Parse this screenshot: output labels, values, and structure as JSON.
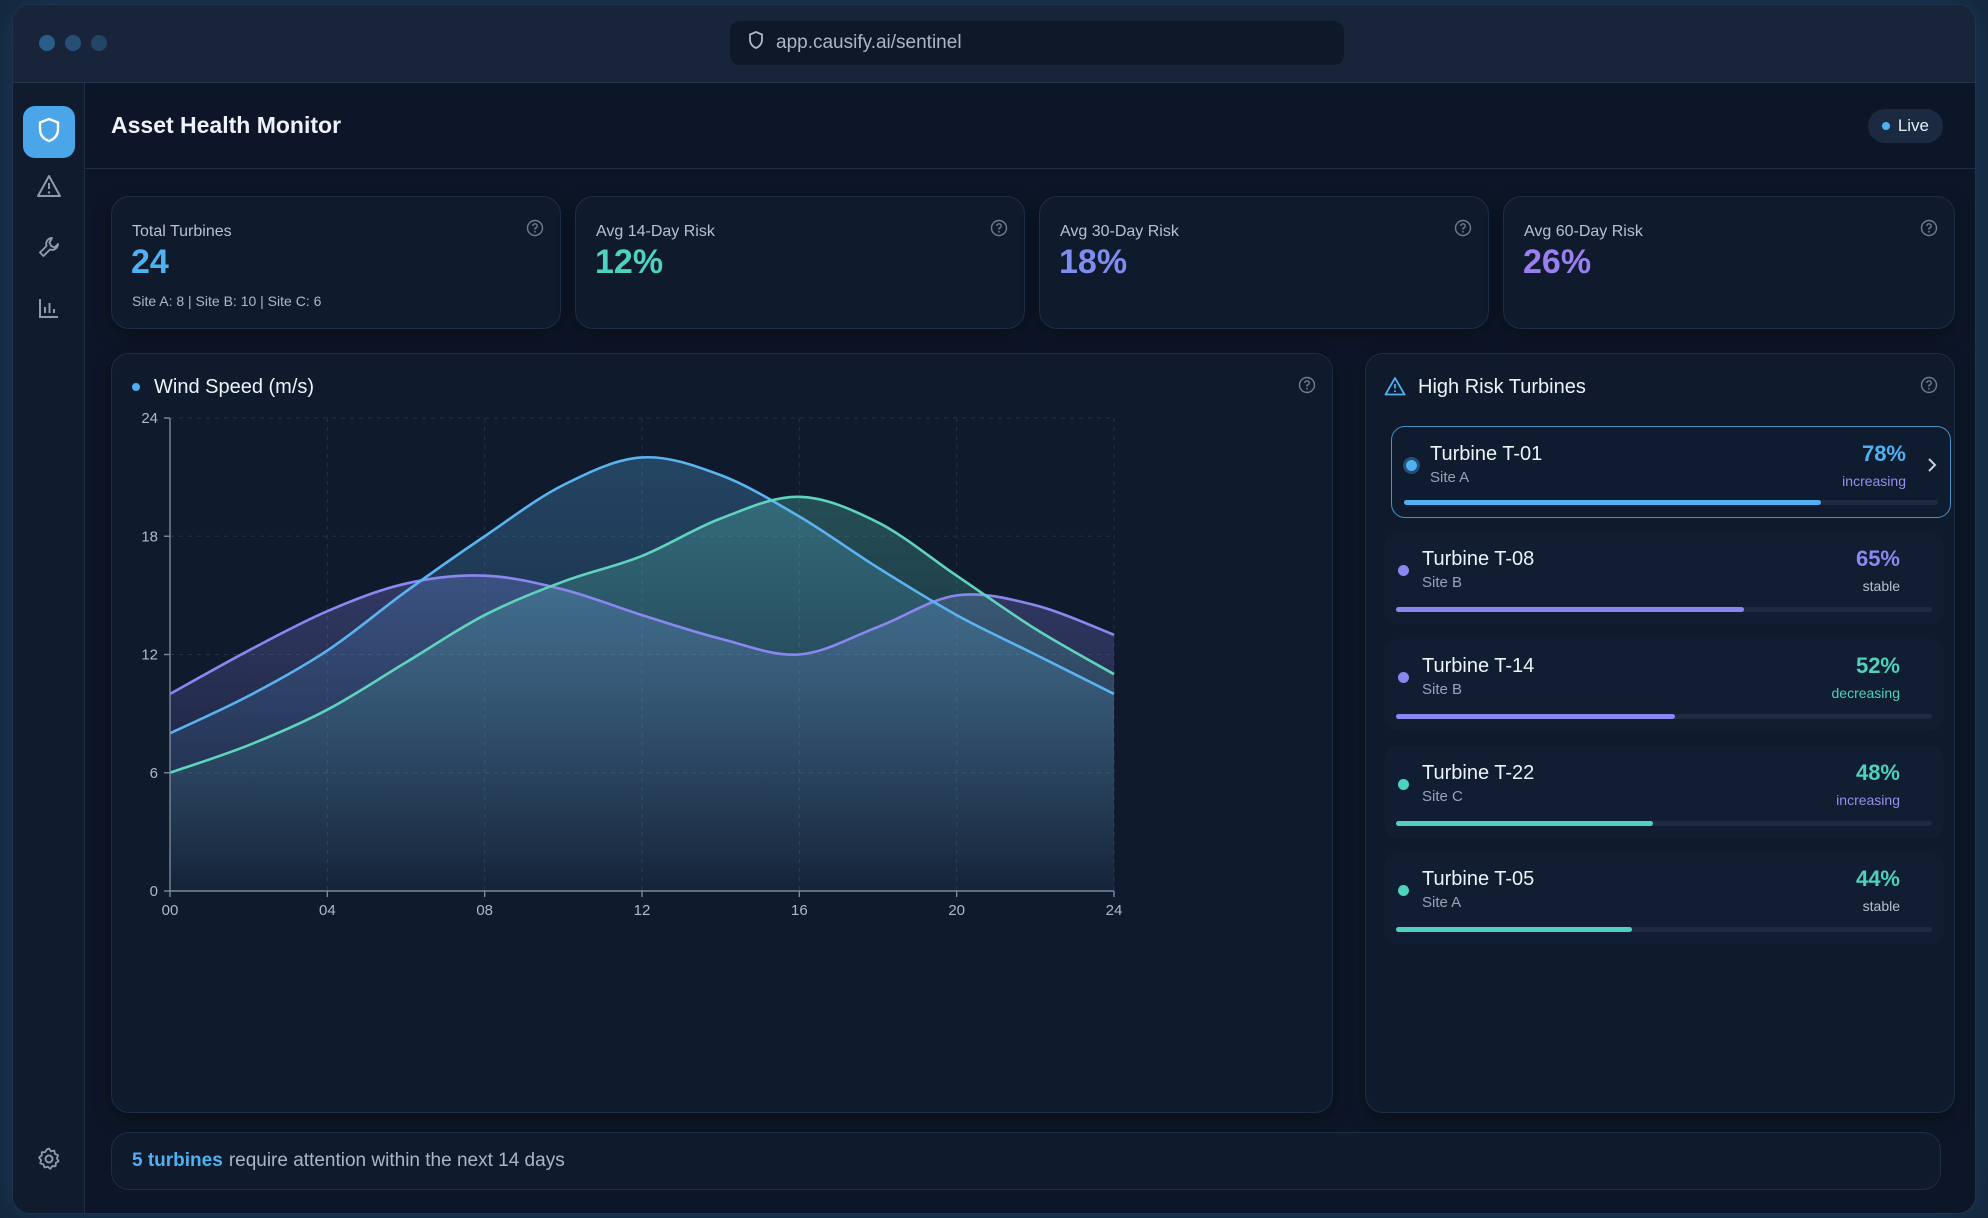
{
  "browser": {
    "url": "app.causify.ai/sentinel"
  },
  "header": {
    "title": "Asset Health Monitor",
    "live_label": "Live"
  },
  "sidebar": {
    "items": [
      {
        "icon": "shield-icon",
        "active": true
      },
      {
        "icon": "warning-icon",
        "active": false
      },
      {
        "icon": "wrench-icon",
        "active": false
      },
      {
        "icon": "bar-chart-icon",
        "active": false
      }
    ],
    "bottom_icon": "gear-icon"
  },
  "stats": [
    {
      "label": "Total Turbines",
      "value": "24",
      "sub": "Site A: 8 | Site B: 10 | Site C: 6",
      "color": "#4fb0f2"
    },
    {
      "label": "Avg 14-Day Risk",
      "value": "12%",
      "sub": "",
      "color": "#4fd1bf"
    },
    {
      "label": "Avg 30-Day Risk",
      "value": "18%",
      "sub": "",
      "color": "#7f8cf0"
    },
    {
      "label": "Avg 60-Day Risk",
      "value": "26%",
      "sub": "",
      "color": "#9b7ff0"
    }
  ],
  "chart_panel": {
    "title": "Wind Speed (m/s)"
  },
  "chart_data": {
    "type": "area",
    "title": "Wind Speed (m/s)",
    "xlabel": "",
    "ylabel": "",
    "x": [
      0,
      2,
      4,
      6,
      8,
      10,
      12,
      14,
      16,
      18,
      20,
      22,
      24
    ],
    "x_ticks": [
      "00",
      "04",
      "08",
      "12",
      "16",
      "20",
      "24"
    ],
    "y_ticks": [
      "0",
      "6",
      "12",
      "18",
      "24"
    ],
    "ylim": [
      0,
      24
    ],
    "xlim": [
      0,
      24
    ],
    "grid": true,
    "series": [
      {
        "color": "#8b87f0",
        "values": [
          10,
          12.2,
          14.2,
          15.6,
          16,
          15.3,
          14,
          12.8,
          12,
          13.4,
          15,
          14.5,
          13
        ]
      },
      {
        "color": "#5bb3f0",
        "values": [
          8,
          9.9,
          12.2,
          15.2,
          18,
          20.6,
          22,
          21.1,
          19,
          16.4,
          14,
          12,
          10
        ]
      },
      {
        "color": "#5fd3bd",
        "values": [
          6,
          7.4,
          9.2,
          11.6,
          14,
          15.7,
          17,
          18.9,
          20,
          18.7,
          16,
          13.3,
          11
        ]
      }
    ]
  },
  "risk_panel": {
    "title": "High Risk Turbines",
    "items": [
      {
        "name": "Turbine T-01",
        "site": "Site A",
        "pct": "78%",
        "risk": 0.78,
        "trend": "increasing",
        "color": "#4fb0f2",
        "trend_color": "#9b8cf0",
        "selected": true
      },
      {
        "name": "Turbine T-08",
        "site": "Site B",
        "pct": "65%",
        "risk": 0.65,
        "trend": "stable",
        "color": "#8b87f0",
        "trend_color": "#b7c2d1",
        "selected": false
      },
      {
        "name": "Turbine T-14",
        "site": "Site B",
        "pct": "52%",
        "risk": 0.52,
        "trend": "decreasing",
        "color": "#8b87f0",
        "trend_color": "#4fd1bf",
        "selected": false
      },
      {
        "name": "Turbine T-22",
        "site": "Site C",
        "pct": "48%",
        "risk": 0.48,
        "trend": "increasing",
        "color": "#4fd1bf",
        "trend_color": "#9b8cf0",
        "selected": false
      },
      {
        "name": "Turbine T-05",
        "site": "Site A",
        "pct": "44%",
        "risk": 0.44,
        "trend": "stable",
        "color": "#4fd1bf",
        "trend_color": "#b7c2d1",
        "selected": false
      }
    ]
  },
  "footer": {
    "highlight": "5 turbines",
    "text": "require attention within the next 14 days"
  }
}
